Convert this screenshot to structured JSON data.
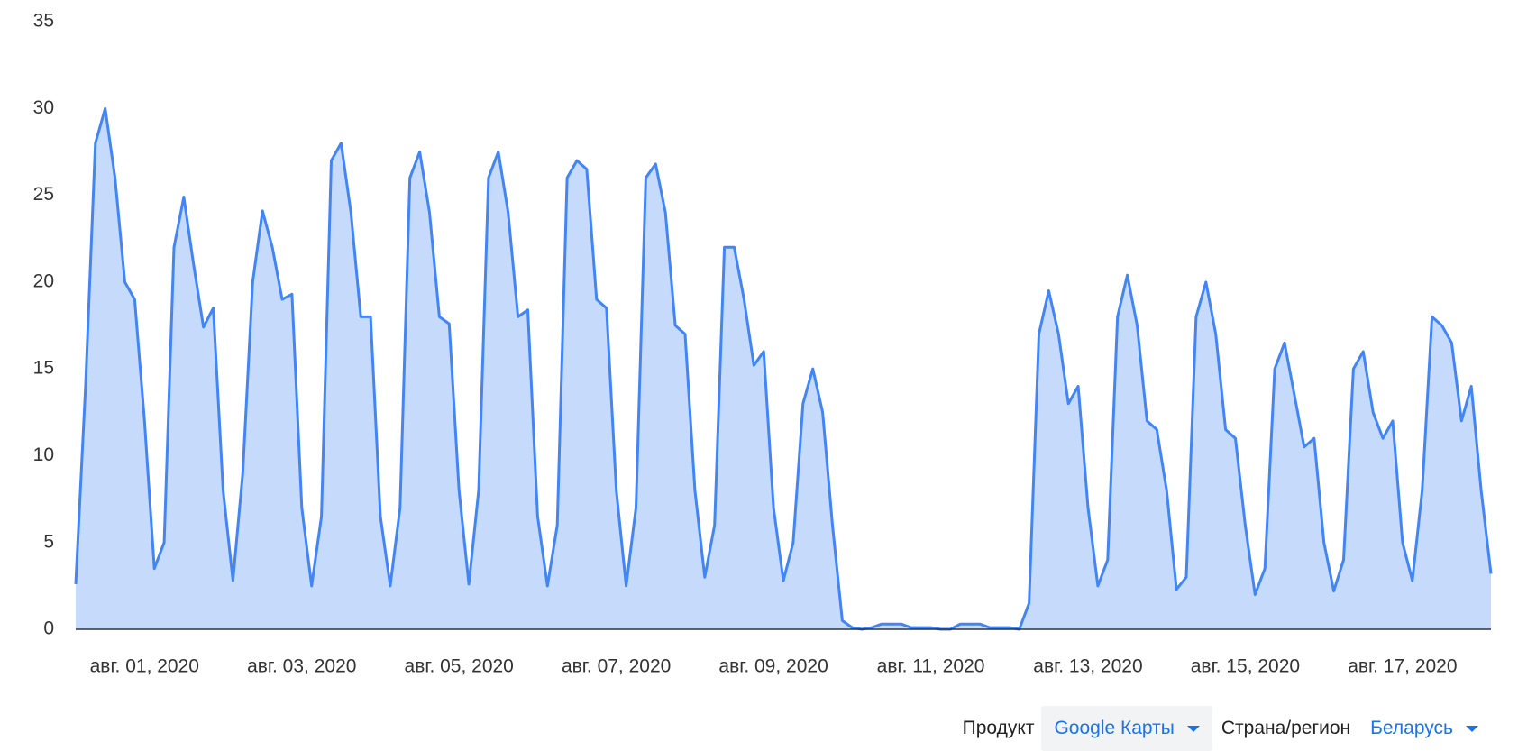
{
  "chart_data": {
    "type": "area",
    "line_color": "#4285f4",
    "fill_color": "#c6dafc",
    "ylim": [
      0,
      35
    ],
    "yticks": [
      0,
      5,
      10,
      15,
      20,
      25,
      30,
      35
    ],
    "grid": false,
    "categories": [
      null,
      null,
      null,
      null,
      null,
      null,
      null,
      "авг. 01, 2020",
      null,
      null,
      null,
      null,
      null,
      null,
      null,
      null,
      null,
      null,
      null,
      null,
      null,
      null,
      null,
      "авг. 03, 2020",
      null,
      null,
      null,
      null,
      null,
      null,
      null,
      null,
      null,
      null,
      null,
      null,
      null,
      null,
      null,
      "авг. 05, 2020",
      null,
      null,
      null,
      null,
      null,
      null,
      null,
      null,
      null,
      null,
      null,
      null,
      null,
      null,
      null,
      "авг. 07, 2020",
      null,
      null,
      null,
      null,
      null,
      null,
      null,
      null,
      null,
      null,
      null,
      null,
      null,
      null,
      null,
      "авг. 09, 2020",
      null,
      null,
      null,
      null,
      null,
      null,
      null,
      null,
      null,
      null,
      null,
      null,
      null,
      null,
      null,
      "авг. 11, 2020",
      null,
      null,
      null,
      null,
      null,
      null,
      null,
      null,
      null,
      null,
      null,
      null,
      null,
      null,
      null,
      "авг. 13, 2020",
      null,
      null,
      null,
      null,
      null,
      null,
      null,
      null,
      null,
      null,
      null,
      null,
      null,
      null,
      null,
      "авг. 15, 2020",
      null,
      null,
      null,
      null,
      null,
      null,
      null,
      null,
      null,
      null,
      null,
      null,
      null,
      null,
      null,
      "авг. 17, 2020",
      null,
      null,
      null,
      null,
      null,
      null,
      null,
      null,
      null
    ],
    "values": [
      2.6,
      14,
      28,
      30,
      26,
      20,
      19,
      12,
      3.5,
      5,
      22,
      24.9,
      21,
      17.4,
      18.5,
      8,
      2.8,
      9,
      20,
      24.1,
      22,
      19,
      19.3,
      7,
      2.5,
      6.5,
      27,
      28,
      24,
      18,
      18,
      6.5,
      2.5,
      7,
      26,
      27.5,
      24,
      18,
      17.6,
      8,
      2.6,
      8,
      26,
      27.5,
      24,
      18,
      18.4,
      6.5,
      2.5,
      6,
      26,
      27,
      26.5,
      19,
      18.5,
      8,
      2.5,
      7,
      26,
      26.8,
      24,
      17.5,
      17,
      8,
      3,
      6,
      22,
      22,
      19,
      15.2,
      16,
      7,
      2.8,
      5,
      13,
      15,
      12.5,
      6,
      0.5,
      0.1,
      0,
      0.1,
      0.3,
      0.3,
      0.3,
      0.1,
      0.1,
      0.1,
      0,
      0,
      0.3,
      0.3,
      0.3,
      0.1,
      0.1,
      0.1,
      0,
      1.5,
      17,
      19.5,
      17,
      13,
      14,
      7,
      2.5,
      4,
      18,
      20.4,
      17.5,
      12,
      11.5,
      8,
      2.3,
      3,
      18,
      20,
      17,
      11.5,
      11,
      6,
      2,
      3.5,
      15,
      16.5,
      13.5,
      10.5,
      11,
      5,
      2.2,
      4,
      15,
      16,
      12.5,
      11,
      12,
      5,
      2.8,
      8,
      18,
      17.5,
      16.5,
      12,
      14,
      8,
      3.2
    ]
  },
  "filters": [
    {
      "label": "Продукт",
      "value": "Google Карты"
    },
    {
      "label": "Страна/регион",
      "value": "Беларусь"
    }
  ]
}
